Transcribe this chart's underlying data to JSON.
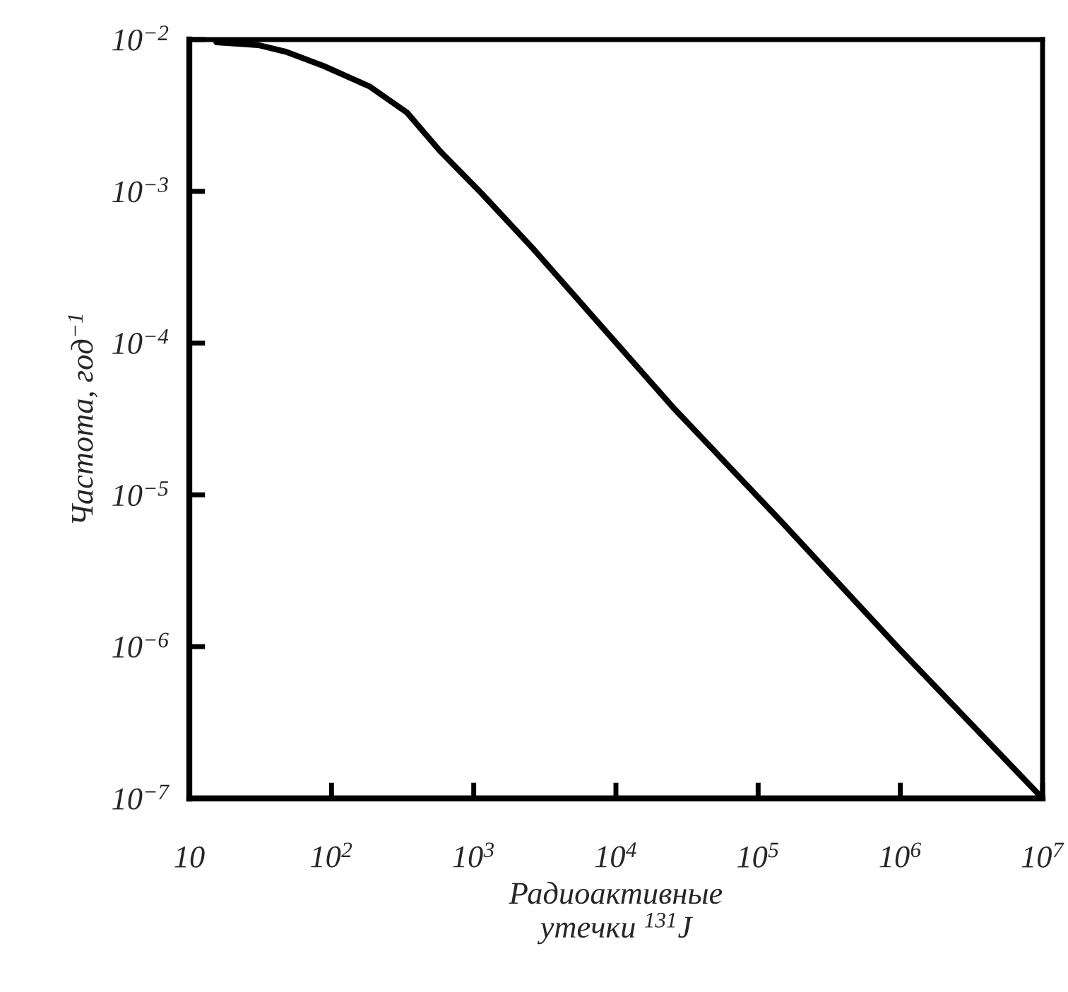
{
  "chart_data": {
    "type": "line",
    "xlabel": "Радиоактивные\nутечки $^{131}$J",
    "ylabel": "Частота, год$^{−1}$",
    "log": "xy",
    "x": [
      15.5,
      30.5,
      48,
      88,
      186,
      340,
      577,
      1135,
      2610,
      25000,
      147000,
      1000000,
      10000000
    ],
    "series": [
      {
        "color": "#000000",
        "values": [
          0.0096,
          0.0092,
          0.0083,
          0.0067,
          0.0049,
          0.0033,
          0.00185,
          0.00097,
          0.00042,
          3.8e-05,
          6.6e-06,
          9.5e-07,
          1e-07
        ]
      }
    ],
    "xlim": [
      10,
      10000000
    ],
    "ylim": [
      1e-07,
      0.01
    ],
    "xticks": [
      10,
      {
        "value": 100,
        "label": "10$^{2}$"
      },
      {
        "value": 1000,
        "label": "10$^{3}$"
      },
      {
        "value": 10000,
        "label": "10$^{4}$"
      },
      {
        "value": 100000,
        "label": "10$^{5}$"
      },
      {
        "value": 1000000,
        "label": "10$^{6}$"
      },
      {
        "value": 10000000,
        "label": "10$^{7}$"
      }
    ],
    "yticks": [
      {
        "value": 1e-07,
        "label": "10$^{−7}$"
      },
      {
        "value": 1e-06,
        "label": "10$^{−6}$"
      },
      {
        "value": 1e-05,
        "label": "10$^{−5}$"
      },
      {
        "value": 0.0001,
        "label": "10$^{−4}$"
      },
      {
        "value": 0.001,
        "label": "10$^{−3}$"
      },
      {
        "value": 0.01,
        "label": "10$^{−2}$"
      }
    ],
    "grid": false,
    "line_style": "solid"
  }
}
